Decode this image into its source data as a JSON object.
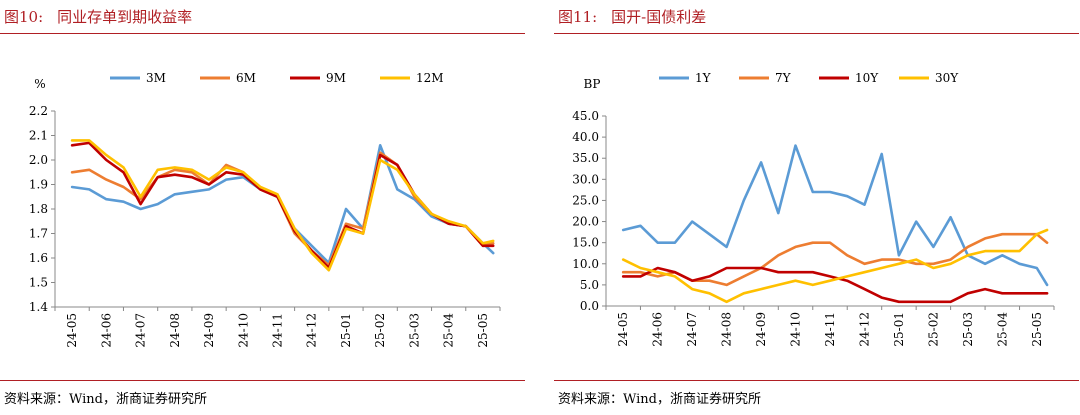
{
  "panels": [
    {
      "id": "p1",
      "figure_number": "图10:",
      "title": "同业存单到期收益率",
      "source": "资料来源：Wind，浙商证券研究所"
    },
    {
      "id": "p2",
      "figure_number": "图11:",
      "title": "国开-国债利差",
      "source": "资料来源：Wind，浙商证券研究所"
    }
  ],
  "chart_data": [
    {
      "type": "line",
      "title": "同业存单到期收益率",
      "ylabel": "%",
      "ylim": [
        1.4,
        2.2
      ],
      "yticks": [
        "1.4",
        "1.5",
        "1.6",
        "1.7",
        "1.8",
        "1.9",
        "2.0",
        "2.1",
        "2.2"
      ],
      "categories": [
        "24-05",
        "24-06",
        "24-07",
        "24-08",
        "24-09",
        "24-10",
        "24-11",
        "24-12",
        "25-01",
        "25-02",
        "25-03",
        "25-04",
        "25-05"
      ],
      "grid": false,
      "legend_position": "top",
      "x": [
        0,
        0.5,
        1,
        1.5,
        2,
        2.5,
        3,
        3.5,
        4,
        4.5,
        5,
        5.5,
        6,
        6.5,
        7,
        7.5,
        8,
        8.5,
        9,
        9.5,
        10,
        10.5,
        11,
        11.5,
        12,
        12.3
      ],
      "series": [
        {
          "name": "3M",
          "color": "#5b9bd5",
          "values": [
            1.89,
            1.88,
            1.84,
            1.83,
            1.8,
            1.82,
            1.86,
            1.87,
            1.88,
            1.92,
            1.93,
            1.88,
            1.85,
            1.72,
            1.65,
            1.58,
            1.8,
            1.72,
            2.06,
            1.88,
            1.84,
            1.77,
            1.74,
            1.73,
            1.66,
            1.62
          ]
        },
        {
          "name": "6M",
          "color": "#ed7d31",
          "values": [
            1.95,
            1.96,
            1.92,
            1.89,
            1.84,
            1.93,
            1.96,
            1.95,
            1.9,
            1.98,
            1.95,
            1.88,
            1.85,
            1.7,
            1.63,
            1.57,
            1.74,
            1.72,
            2.03,
            1.98,
            1.85,
            1.78,
            1.74,
            1.73,
            1.65,
            1.66
          ]
        },
        {
          "name": "9M",
          "color": "#c00000",
          "values": [
            2.06,
            2.07,
            2.0,
            1.95,
            1.82,
            1.93,
            1.94,
            1.93,
            1.9,
            1.95,
            1.94,
            1.88,
            1.85,
            1.71,
            1.63,
            1.56,
            1.73,
            1.7,
            2.02,
            1.98,
            1.86,
            1.78,
            1.74,
            1.73,
            1.65,
            1.65
          ]
        },
        {
          "name": "12M",
          "color": "#ffc000",
          "values": [
            2.08,
            2.08,
            2.02,
            1.97,
            1.85,
            1.96,
            1.97,
            1.96,
            1.92,
            1.97,
            1.95,
            1.89,
            1.86,
            1.72,
            1.62,
            1.55,
            1.72,
            1.7,
            2.0,
            1.96,
            1.86,
            1.78,
            1.75,
            1.73,
            1.66,
            1.67
          ]
        }
      ]
    },
    {
      "type": "line",
      "title": "国开-国债利差",
      "ylabel": "BP",
      "ylim": [
        0,
        45
      ],
      "yticks": [
        "0.0",
        "5.0",
        "10.0",
        "15.0",
        "20.0",
        "25.0",
        "30.0",
        "35.0",
        "40.0",
        "45.0"
      ],
      "categories": [
        "24-05",
        "24-06",
        "24-07",
        "24-08",
        "24-09",
        "24-10",
        "24-11",
        "24-12",
        "25-01",
        "25-02",
        "25-03",
        "25-04",
        "25-05"
      ],
      "grid": false,
      "legend_position": "top",
      "x": [
        0,
        0.5,
        1,
        1.5,
        2,
        2.5,
        3,
        3.5,
        4,
        4.5,
        5,
        5.5,
        6,
        6.5,
        7,
        7.5,
        8,
        8.5,
        9,
        9.5,
        10,
        10.5,
        11,
        11.5,
        12,
        12.3
      ],
      "series": [
        {
          "name": "1Y",
          "color": "#5b9bd5",
          "values": [
            18,
            19,
            15,
            15,
            20,
            17,
            14,
            25,
            34,
            22,
            38,
            27,
            27,
            26,
            24,
            36,
            12,
            20,
            14,
            21,
            12,
            10,
            12,
            10,
            9,
            5
          ]
        },
        {
          "name": "7Y",
          "color": "#ed7d31",
          "values": [
            8,
            8,
            7,
            8,
            6,
            6,
            5,
            7,
            9,
            12,
            14,
            15,
            15,
            12,
            10,
            11,
            11,
            10,
            10,
            11,
            14,
            16,
            17,
            17,
            17,
            15
          ]
        },
        {
          "name": "10Y",
          "color": "#c00000",
          "values": [
            7,
            7,
            9,
            8,
            6,
            7,
            9,
            9,
            9,
            8,
            8,
            8,
            7,
            6,
            4,
            2,
            1,
            1,
            1,
            1,
            3,
            4,
            3,
            3,
            3,
            3
          ]
        },
        {
          "name": "30Y",
          "color": "#ffc000",
          "values": [
            11,
            9,
            8,
            7,
            4,
            3,
            1,
            3,
            4,
            5,
            6,
            5,
            6,
            7,
            8,
            9,
            10,
            11,
            9,
            10,
            12,
            13,
            13,
            13,
            17,
            18
          ]
        }
      ]
    }
  ]
}
